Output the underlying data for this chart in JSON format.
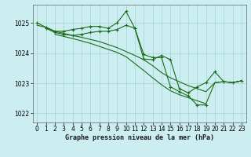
{
  "title": "Graphe pression niveau de la mer (hPa)",
  "background_color": "#cceef0",
  "grid_color": "#aad8dc",
  "line_color": "#1a6b1a",
  "xlim": [
    -0.5,
    23.5
  ],
  "ylim": [
    1021.7,
    1025.6
  ],
  "yticks": [
    1022,
    1023,
    1024,
    1025
  ],
  "xticks": [
    0,
    1,
    2,
    3,
    4,
    5,
    6,
    7,
    8,
    9,
    10,
    11,
    12,
    13,
    14,
    15,
    16,
    17,
    18,
    19,
    20,
    21,
    22,
    23
  ],
  "lines": [
    {
      "x": [
        0,
        1,
        2,
        3,
        4,
        5,
        6,
        7,
        8,
        9,
        10,
        11,
        12,
        13,
        14,
        15,
        16,
        17,
        18,
        19,
        20,
        21,
        22,
        23
      ],
      "y": [
        1025.0,
        1024.85,
        1024.72,
        1024.72,
        1024.78,
        1024.82,
        1024.88,
        1024.88,
        1024.82,
        1025.0,
        1025.38,
        1024.82,
        1023.8,
        1023.78,
        1023.92,
        1023.78,
        1022.82,
        1022.68,
        1022.88,
        1023.02,
        1023.38,
        1023.05,
        1023.02,
        1023.08
      ],
      "marker": true
    },
    {
      "x": [
        1,
        2,
        3,
        4,
        5,
        6,
        7,
        8,
        9,
        10,
        11,
        12,
        13,
        14,
        15,
        16,
        17,
        18,
        19
      ],
      "y": [
        1024.82,
        1024.68,
        1024.62,
        1024.58,
        1024.62,
        1024.68,
        1024.72,
        1024.72,
        1024.78,
        1024.92,
        1024.82,
        1023.95,
        1023.85,
        1023.85,
        1022.88,
        1022.72,
        1022.58,
        1022.28,
        1022.28
      ],
      "marker": true
    },
    {
      "x": [
        0,
        1,
        2,
        3,
        4,
        5,
        6,
        7,
        8,
        9,
        10,
        11,
        12,
        13,
        14,
        15,
        16,
        17,
        18,
        19,
        20,
        21,
        22,
        23
      ],
      "y": [
        1024.92,
        1024.85,
        1024.72,
        1024.65,
        1024.58,
        1024.52,
        1024.45,
        1024.38,
        1024.28,
        1024.18,
        1024.05,
        1023.92,
        1023.78,
        1023.58,
        1023.35,
        1023.18,
        1023.05,
        1022.92,
        1022.82,
        1022.72,
        1023.02,
        1023.05,
        1023.02,
        1023.08
      ],
      "marker": false
    },
    {
      "x": [
        2,
        3,
        4,
        5,
        6,
        7,
        8,
        9,
        10,
        11,
        12,
        13,
        14,
        15,
        16,
        17,
        18,
        19,
        20,
        21,
        22,
        23
      ],
      "y": [
        1024.62,
        1024.55,
        1024.48,
        1024.4,
        1024.32,
        1024.22,
        1024.12,
        1024.02,
        1023.88,
        1023.65,
        1023.42,
        1023.18,
        1022.95,
        1022.75,
        1022.62,
        1022.52,
        1022.42,
        1022.32,
        1023.02,
        1023.05,
        1023.02,
        1023.08
      ],
      "marker": false
    }
  ]
}
